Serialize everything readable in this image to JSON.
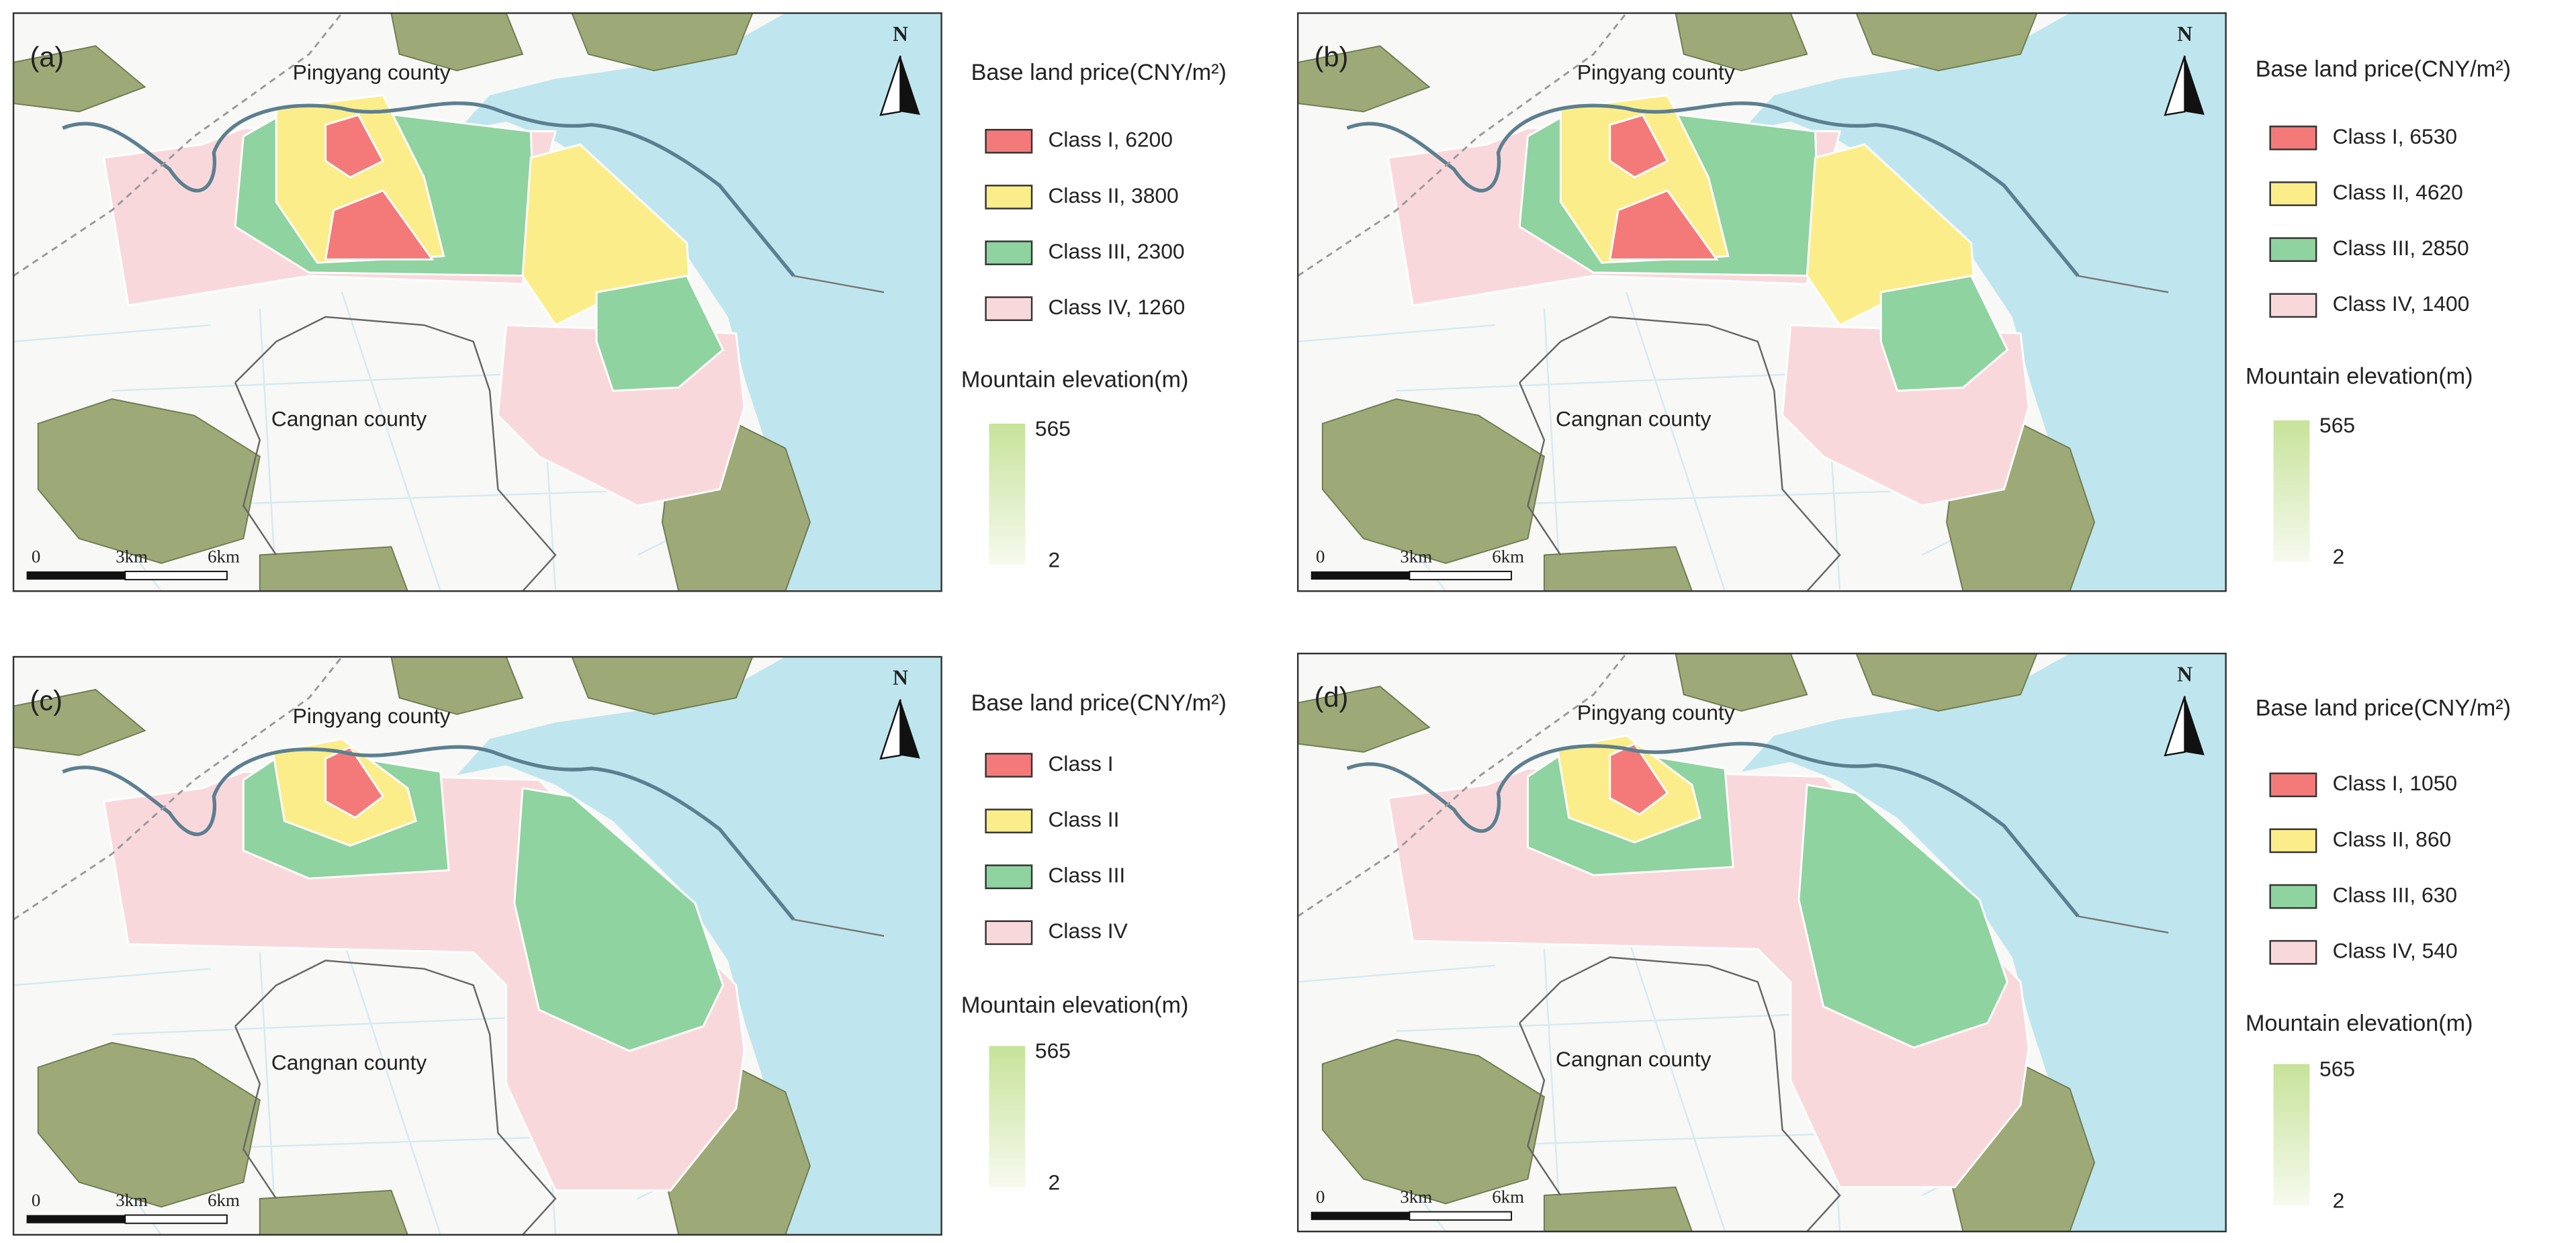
{
  "panels": [
    {
      "label": "(a)",
      "north": "N",
      "places": [
        "Pingyang county",
        "Cangnan county"
      ],
      "legend_title": "Base land price(CNY/m²)",
      "classes": [
        "Class I, 6200",
        "Class II, 3800",
        "Class III, 2300",
        "Class IV, 1260"
      ],
      "elevation_title": "Mountain elevation(m)",
      "elevation_max": 565,
      "elevation_min": 2,
      "scale": [
        "0",
        "3km",
        "6km"
      ]
    },
    {
      "label": "(b)",
      "north": "N",
      "places": [
        "Pingyang county",
        "Cangnan county"
      ],
      "legend_title": "Base land price(CNY/m²)",
      "classes": [
        "Class I, 6530",
        "Class II, 4620",
        "Class III, 2850",
        "Class IV, 1400"
      ],
      "elevation_title": "Mountain elevation(m)",
      "elevation_max": 565,
      "elevation_min": 2,
      "scale": [
        "0",
        "3km",
        "6km"
      ]
    },
    {
      "label": "(c)",
      "north": "N",
      "places": [
        "Pingyang county",
        "Cangnan county"
      ],
      "legend_title": "Base land price(CNY/m²)",
      "classes": [
        "Class I",
        "Class II",
        "Class III",
        "Class IV"
      ],
      "elevation_title": "Mountain elevation(m)",
      "elevation_max": 565,
      "elevation_min": 2,
      "scale": [
        "0",
        "3km",
        "6km"
      ]
    },
    {
      "label": "(d)",
      "north": "N",
      "places": [
        "Pingyang county",
        "Cangnan county"
      ],
      "legend_title": "Base land price(CNY/m²)",
      "classes": [
        "Class I, 1050",
        "Class II, 860",
        "Class III, 630",
        "Class IV, 540"
      ],
      "elevation_title": "Mountain elevation(m)",
      "elevation_max": 565,
      "elevation_min": 2,
      "scale": [
        "0",
        "3km",
        "6km"
      ]
    }
  ]
}
